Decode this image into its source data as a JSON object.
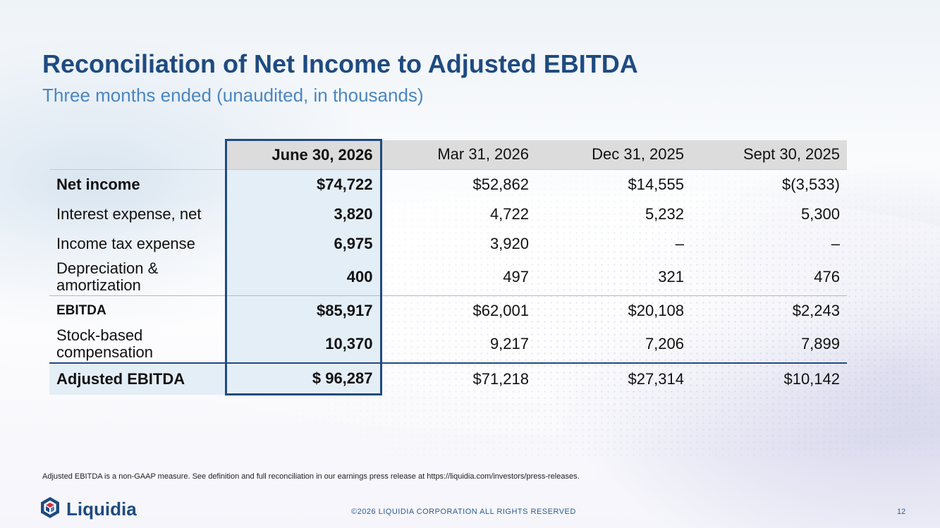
{
  "slide": {
    "title": "Reconciliation of Net Income to Adjusted EBITDA",
    "subtitle": "Three months ended (unaudited, in thousands)",
    "footnote": "Adjusted EBITDA is a non-GAAP measure. See definition and full reconciliation in our earnings press release at https://liquidia.com/investors/press-releases.",
    "copyright": "©2026 LIQUIDIA CORPORATION ALL RIGHTS RESERVED",
    "page_number": "12",
    "logo_text": "Liquidia"
  },
  "table": {
    "columns": [
      "June 30, 2026",
      "Mar 31, 2026",
      "Dec 31, 2025",
      "Sept 30, 2025"
    ],
    "rows": [
      {
        "label": "Net income",
        "values": [
          "$74,722",
          "$52,862",
          "$14,555",
          "$(3,533)"
        ]
      },
      {
        "label": "Interest expense, net",
        "values": [
          "3,820",
          "4,722",
          "5,232",
          "5,300"
        ]
      },
      {
        "label": "Income tax expense",
        "values": [
          "6,975",
          "3,920",
          "–",
          "–"
        ]
      },
      {
        "label": "Depreciation & amortization",
        "values": [
          "400",
          "497",
          "321",
          "476"
        ]
      },
      {
        "label": "EBITDA",
        "values": [
          "$85,917",
          "$62,001",
          "$20,108",
          "$2,243"
        ]
      },
      {
        "label": "Stock-based compensation",
        "values": [
          "10,370",
          "9,217",
          "7,206",
          "7,899"
        ]
      },
      {
        "label": "Adjusted EBITDA",
        "values": [
          "$ 96,287",
          "$71,218",
          "$27,314",
          "$10,142"
        ]
      }
    ]
  },
  "colors": {
    "title": "#1e4b80",
    "subtitle": "#4a86c0",
    "highlight_border": "#1e4b80",
    "highlight_fill": "#e4eef7",
    "header_fill": "#dcdcdc"
  },
  "icons": {
    "logo": "liquidia-logo-icon"
  }
}
